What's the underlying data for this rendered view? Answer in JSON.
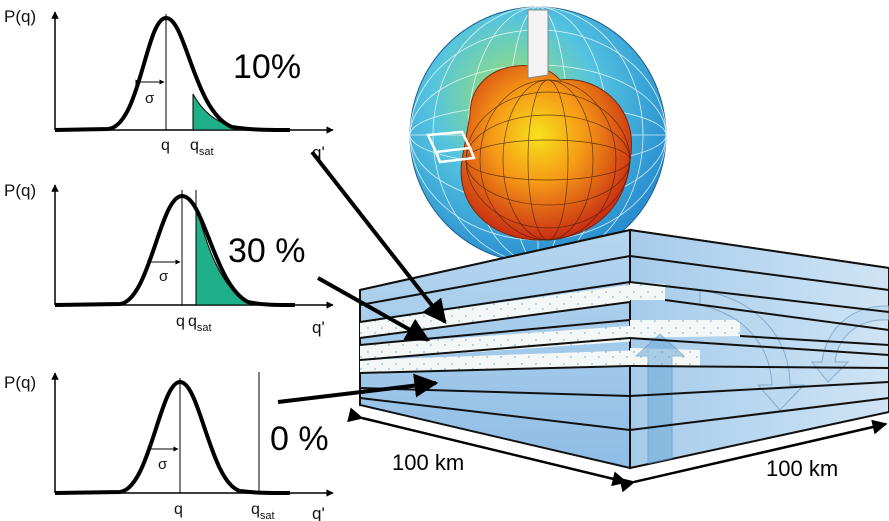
{
  "panels": [
    {
      "ylabel": "P(q)",
      "xlabel": "q'",
      "mean_label": "q",
      "sigma_label": "σ",
      "qsat_main": "q",
      "qsat_sub": "sat",
      "percent": "10%"
    },
    {
      "ylabel": "P(q)",
      "xlabel": "q'",
      "mean_label": "q",
      "sigma_label": "σ",
      "qsat_main": "q",
      "qsat_sub": "sat",
      "percent": "30 %"
    },
    {
      "ylabel": "P(q)",
      "xlabel": "q'",
      "mean_label": "q",
      "sigma_label": "σ",
      "qsat_main": "q",
      "qsat_sub": "sat",
      "percent": "0 %"
    }
  ],
  "grid_box": {
    "width_label_left": "100 km",
    "width_label_right": "100 km"
  },
  "colors": {
    "saturated_fill": "#1fb08a",
    "box_face": "#a9cdea",
    "box_line": "#111111",
    "cloud_layer": "#f2f7f6"
  }
}
